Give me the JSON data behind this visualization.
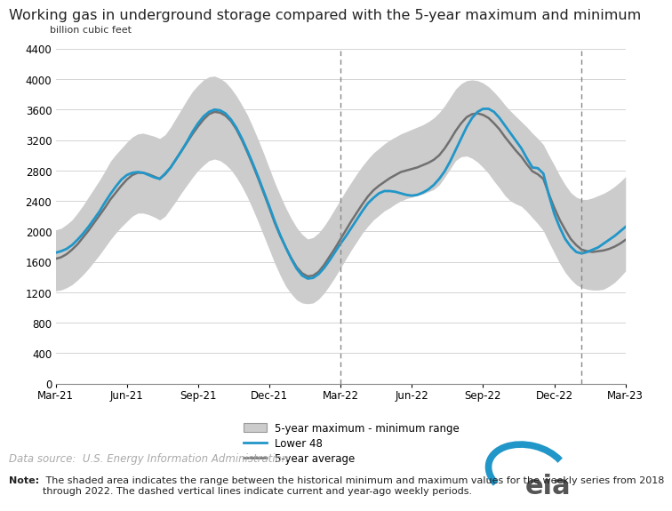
{
  "title": "Working gas in underground storage compared with the 5-year maximum and minimum",
  "ylabel": "billion cubic feet",
  "ylim": [
    0,
    4400
  ],
  "yticks": [
    0,
    400,
    800,
    1200,
    1600,
    2000,
    2400,
    2800,
    3200,
    3600,
    4000,
    4400
  ],
  "xtick_labels": [
    "Mar-21",
    "Jun-21",
    "Sep-21",
    "Dec-21",
    "Mar-22",
    "Jun-22",
    "Sep-22",
    "Dec-22",
    "Mar-23"
  ],
  "xtick_positions": [
    0,
    13,
    26,
    39,
    52,
    65,
    78,
    91,
    104
  ],
  "vline_positions": [
    52,
    96
  ],
  "data_source": "Data source:  U.S. Energy Information Administration",
  "note_bold": "Note:",
  "note_text": " The shaded area indicates the range between the historical minimum and maximum values for the weekly series from 2018\nthrough 2022. The dashed vertical lines indicate current and year-ago weekly periods.",
  "legend_labels": [
    "5-year maximum - minimum range",
    "Lower 48",
    "5-year average"
  ],
  "shaded_color": "#cccccc",
  "shaded_edge_color": "#bbbbbb",
  "lower48_color": "#2196c8",
  "avg_color": "#707070",
  "background_color": "#ffffff",
  "x": [
    0,
    1,
    2,
    3,
    4,
    5,
    6,
    7,
    8,
    9,
    10,
    11,
    12,
    13,
    14,
    15,
    16,
    17,
    18,
    19,
    20,
    21,
    22,
    23,
    24,
    25,
    26,
    27,
    28,
    29,
    30,
    31,
    32,
    33,
    34,
    35,
    36,
    37,
    38,
    39,
    40,
    41,
    42,
    43,
    44,
    45,
    46,
    47,
    48,
    49,
    50,
    51,
    52,
    53,
    54,
    55,
    56,
    57,
    58,
    59,
    60,
    61,
    62,
    63,
    64,
    65,
    66,
    67,
    68,
    69,
    70,
    71,
    72,
    73,
    74,
    75,
    76,
    77,
    78,
    79,
    80,
    81,
    82,
    83,
    84,
    85,
    86,
    87,
    88,
    89,
    90,
    91,
    92,
    93,
    94,
    95,
    96,
    97,
    98,
    99,
    100,
    101,
    102,
    103,
    104
  ],
  "lower48": [
    1720,
    1740,
    1770,
    1820,
    1890,
    1970,
    2060,
    2160,
    2260,
    2380,
    2490,
    2590,
    2680,
    2740,
    2770,
    2780,
    2770,
    2740,
    2710,
    2690,
    2760,
    2840,
    2950,
    3060,
    3180,
    3310,
    3420,
    3510,
    3570,
    3600,
    3590,
    3550,
    3470,
    3360,
    3220,
    3060,
    2890,
    2710,
    2520,
    2330,
    2130,
    1950,
    1790,
    1640,
    1510,
    1420,
    1380,
    1390,
    1440,
    1520,
    1620,
    1730,
    1840,
    1940,
    2050,
    2160,
    2270,
    2370,
    2440,
    2500,
    2530,
    2530,
    2520,
    2500,
    2480,
    2470,
    2480,
    2510,
    2550,
    2610,
    2690,
    2790,
    2920,
    3070,
    3220,
    3370,
    3490,
    3570,
    3610,
    3610,
    3570,
    3490,
    3390,
    3290,
    3190,
    3090,
    2960,
    2840,
    2830,
    2760,
    2480,
    2230,
    2050,
    1900,
    1800,
    1730,
    1710,
    1730,
    1760,
    1790,
    1840,
    1890,
    1940,
    2000,
    2060
  ],
  "avg": [
    1640,
    1660,
    1700,
    1760,
    1830,
    1920,
    2010,
    2110,
    2210,
    2310,
    2420,
    2510,
    2600,
    2680,
    2740,
    2770,
    2770,
    2750,
    2720,
    2690,
    2750,
    2840,
    2950,
    3060,
    3170,
    3280,
    3380,
    3470,
    3540,
    3570,
    3560,
    3520,
    3450,
    3340,
    3200,
    3040,
    2870,
    2690,
    2500,
    2310,
    2110,
    1940,
    1790,
    1650,
    1530,
    1450,
    1410,
    1420,
    1470,
    1560,
    1670,
    1780,
    1900,
    2020,
    2140,
    2250,
    2360,
    2460,
    2540,
    2600,
    2650,
    2700,
    2740,
    2780,
    2800,
    2820,
    2840,
    2870,
    2900,
    2940,
    3000,
    3090,
    3200,
    3320,
    3420,
    3500,
    3540,
    3550,
    3530,
    3490,
    3420,
    3340,
    3240,
    3150,
    3060,
    2980,
    2880,
    2790,
    2750,
    2690,
    2490,
    2310,
    2150,
    2020,
    1900,
    1820,
    1760,
    1740,
    1730,
    1740,
    1750,
    1770,
    1800,
    1840,
    1890
  ],
  "max_range": [
    2020,
    2040,
    2090,
    2150,
    2240,
    2340,
    2450,
    2560,
    2670,
    2790,
    2920,
    3010,
    3090,
    3170,
    3240,
    3280,
    3290,
    3270,
    3250,
    3220,
    3270,
    3370,
    3490,
    3610,
    3730,
    3840,
    3920,
    3990,
    4030,
    4040,
    4010,
    3960,
    3880,
    3780,
    3660,
    3530,
    3370,
    3200,
    3020,
    2830,
    2640,
    2470,
    2310,
    2170,
    2050,
    1960,
    1900,
    1920,
    1980,
    2070,
    2180,
    2300,
    2420,
    2540,
    2650,
    2760,
    2860,
    2950,
    3030,
    3090,
    3150,
    3200,
    3240,
    3280,
    3310,
    3340,
    3370,
    3400,
    3440,
    3490,
    3560,
    3650,
    3760,
    3870,
    3940,
    3980,
    3990,
    3980,
    3950,
    3900,
    3830,
    3750,
    3660,
    3580,
    3510,
    3440,
    3370,
    3290,
    3220,
    3140,
    3000,
    2870,
    2730,
    2610,
    2510,
    2450,
    2420,
    2420,
    2440,
    2470,
    2500,
    2540,
    2590,
    2650,
    2720
  ],
  "min_range": [
    1220,
    1230,
    1260,
    1300,
    1360,
    1430,
    1510,
    1600,
    1690,
    1790,
    1890,
    1980,
    2060,
    2130,
    2200,
    2240,
    2240,
    2220,
    2190,
    2150,
    2200,
    2300,
    2400,
    2510,
    2610,
    2710,
    2800,
    2870,
    2930,
    2950,
    2930,
    2880,
    2810,
    2710,
    2590,
    2450,
    2290,
    2120,
    1940,
    1760,
    1580,
    1420,
    1280,
    1180,
    1100,
    1060,
    1050,
    1060,
    1110,
    1190,
    1290,
    1400,
    1520,
    1640,
    1760,
    1870,
    1980,
    2070,
    2150,
    2210,
    2270,
    2310,
    2360,
    2400,
    2430,
    2450,
    2470,
    2490,
    2520,
    2550,
    2610,
    2710,
    2820,
    2930,
    2980,
    2990,
    2960,
    2910,
    2840,
    2760,
    2660,
    2570,
    2470,
    2400,
    2360,
    2330,
    2260,
    2180,
    2100,
    2010,
    1860,
    1720,
    1580,
    1460,
    1370,
    1300,
    1260,
    1240,
    1230,
    1230,
    1240,
    1280,
    1330,
    1400,
    1480
  ]
}
